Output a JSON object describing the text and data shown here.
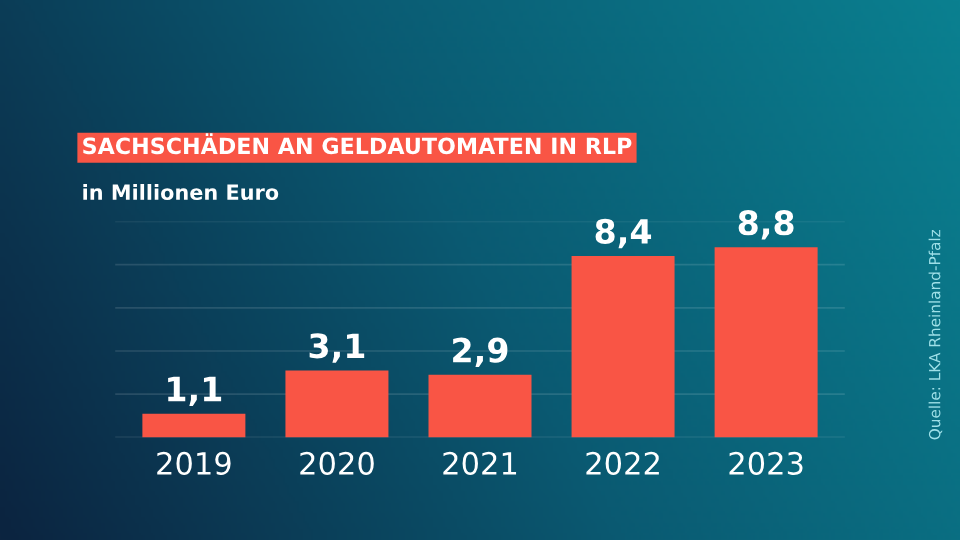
{
  "chart_data": {
    "type": "bar",
    "title": "SACHSCHÄDEN AN GELDAUTOMATEN IN RLP",
    "subtitle": "in Millionen Euro",
    "categories": [
      "2019",
      "2020",
      "2021",
      "2022",
      "2023"
    ],
    "values": [
      1.1,
      3.1,
      2.9,
      8.4,
      8.8
    ],
    "value_labels": [
      "1,1",
      "3,1",
      "2,9",
      "8,4",
      "8,8"
    ],
    "color": "#f95545",
    "ylim": [
      0,
      10
    ],
    "yticks": [
      {
        "value": 0,
        "label": null
      },
      {
        "value": 2,
        "label": null
      },
      {
        "value": 4,
        "label": null
      },
      {
        "value": 6,
        "label": null
      },
      {
        "value": 8,
        "label": null
      },
      {
        "value": 10,
        "label": null
      }
    ],
    "grid": "y",
    "tick_labels": "x",
    "legend": false,
    "annotations": [
      "Quelle: LKA Rheinland-Pfalz"
    ]
  }
}
